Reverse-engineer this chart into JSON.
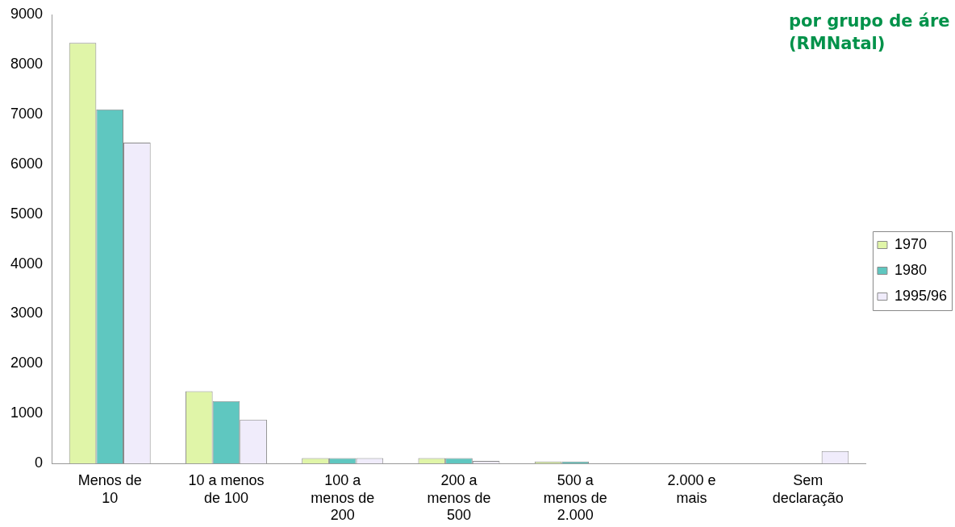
{
  "chart_data": {
    "type": "bar",
    "title": "por grupo de áre",
    "subtitle": "(RMNatal)",
    "categories": [
      "Menos de 10",
      "10 a menos de 100",
      "100 a menos de 200",
      "200 a menos de 500",
      "500 a menos de 2.000",
      "2.000 e mais",
      "Sem declaração"
    ],
    "series": [
      {
        "name": "1970",
        "color": "#e0f5a8",
        "values": [
          8430,
          1450,
          110,
          110,
          40,
          0,
          0
        ]
      },
      {
        "name": "1980",
        "color": "#5fc7c0",
        "values": [
          7100,
          1250,
          110,
          110,
          40,
          0,
          0
        ]
      },
      {
        "name": "1995/96",
        "color": "#f0ecfb",
        "values": [
          6430,
          880,
          110,
          50,
          0,
          0,
          250
        ]
      }
    ],
    "ylim": [
      0,
      9000
    ],
    "yticks": [
      0,
      1000,
      2000,
      3000,
      4000,
      5000,
      6000,
      7000,
      8000,
      9000
    ],
    "grid": false,
    "legend": "right"
  }
}
